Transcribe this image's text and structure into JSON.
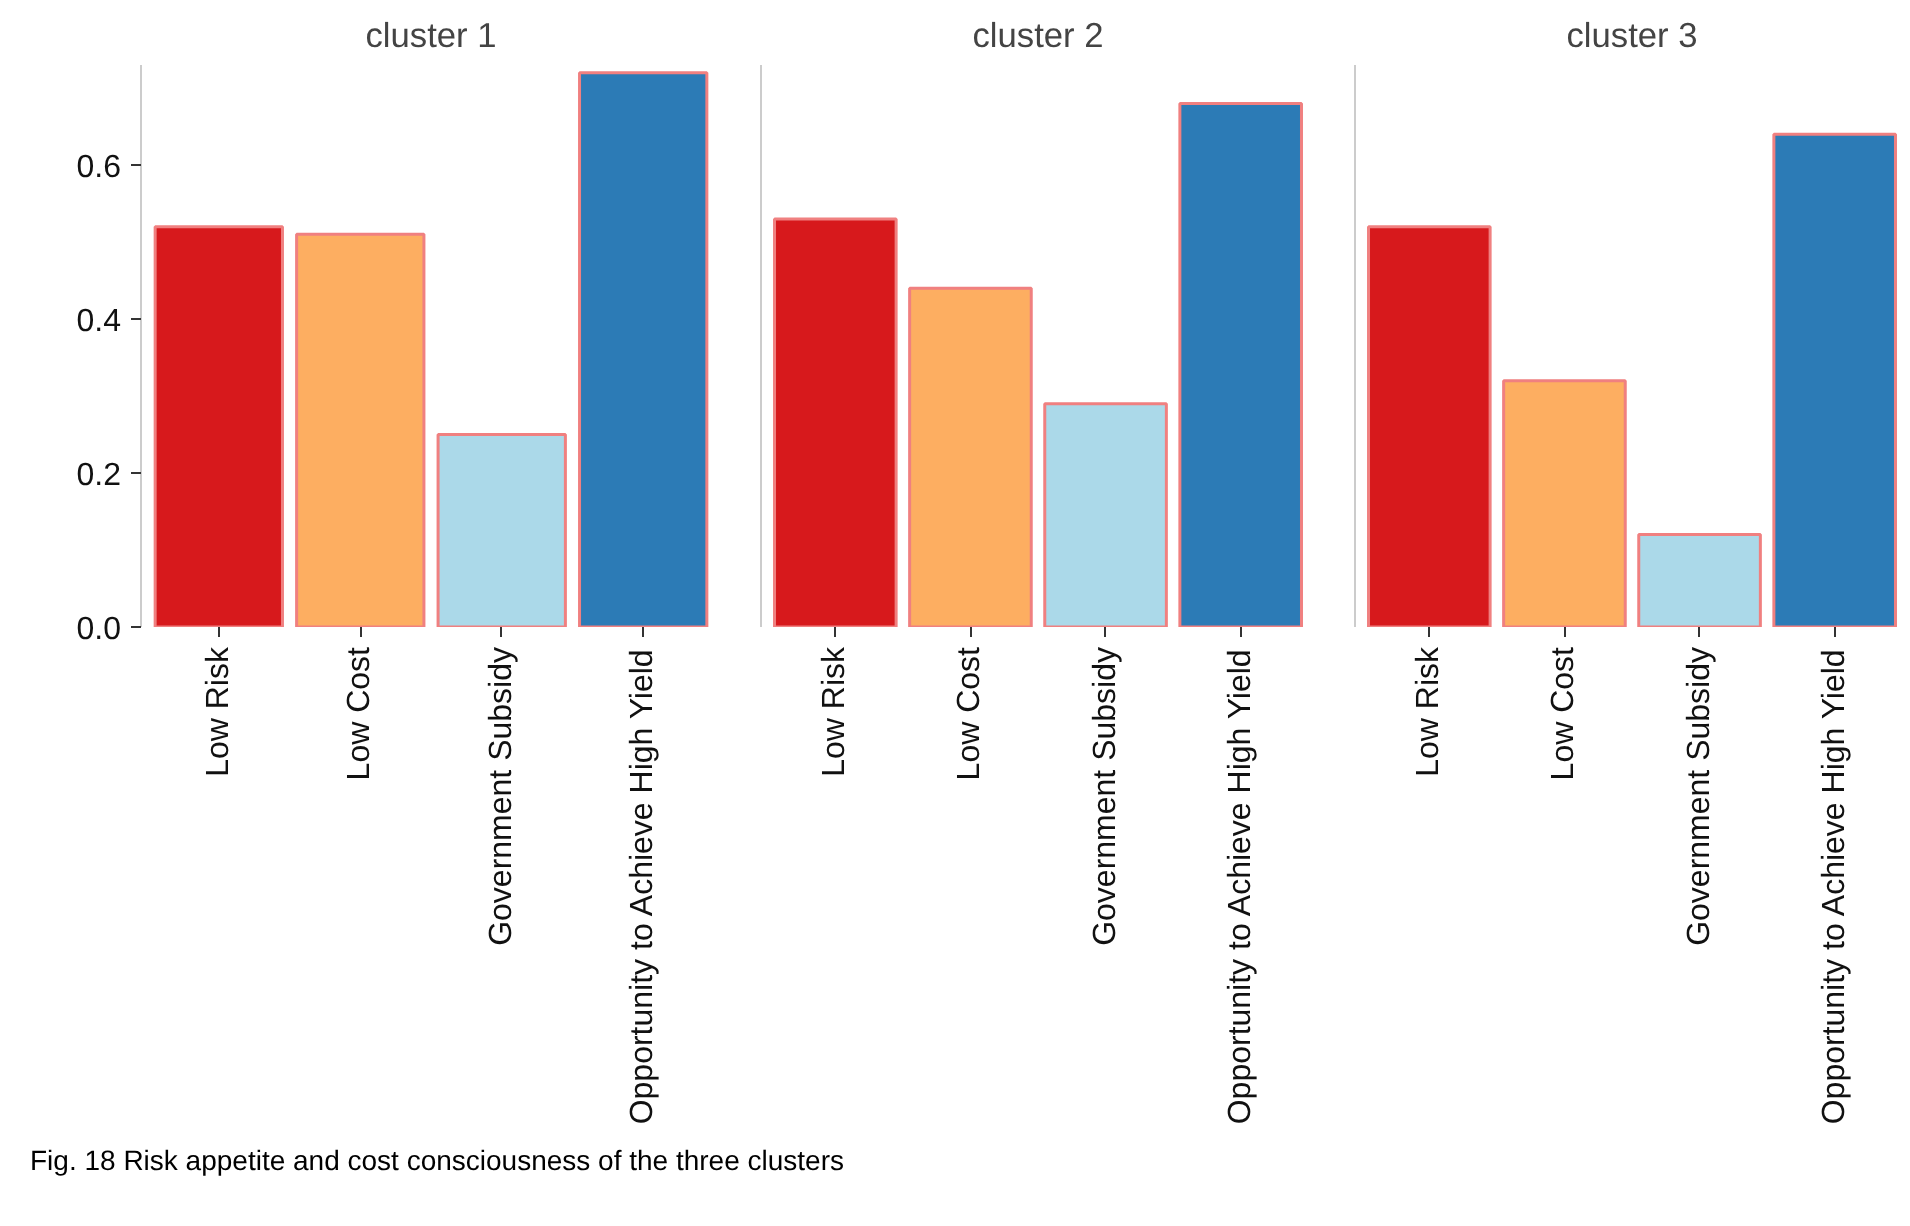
{
  "chart_data": [
    {
      "type": "bar",
      "title": "cluster 1",
      "categories": [
        "Low Risk",
        "Low Cost",
        "Government Subsidy",
        "Opportunity to Achieve High Yield"
      ],
      "values": [
        0.52,
        0.51,
        0.25,
        0.72
      ],
      "colors": [
        "#d7191c",
        "#fdae61",
        "#abd9e9",
        "#2c7bb6"
      ],
      "ylim": [
        0,
        0.73
      ],
      "yticks": [
        {
          "value": 0,
          "label": "0.0"
        },
        0.2,
        0.4,
        0.6
      ],
      "annotations": [
        "Fig. 18  Risk appetite and cost consciousness of the three clusters"
      ]
    },
    {
      "type": "bar",
      "title": "cluster 2",
      "categories": [
        "Low Risk",
        "Low Cost",
        "Government Subsidy",
        "Opportunity to Achieve High Yield"
      ],
      "values": [
        0.53,
        0.44,
        0.29,
        0.68
      ],
      "colors": [
        "#d7191c",
        "#fdae61",
        "#abd9e9",
        "#2c7bb6"
      ],
      "ylim": [
        0,
        0.73
      ],
      "tick_labels": "x"
    },
    {
      "type": "bar",
      "title": "cluster 3",
      "categories": [
        "Low Risk",
        "Low Cost",
        "Government Subsidy",
        "Opportunity to Achieve High Yield"
      ],
      "values": [
        0.52,
        0.32,
        0.12,
        0.64
      ],
      "colors": [
        "#d7191c",
        "#fdae61",
        "#abd9e9",
        "#2c7bb6"
      ],
      "ylim": [
        0,
        0.73
      ],
      "tick_labels": "x"
    }
  ]
}
